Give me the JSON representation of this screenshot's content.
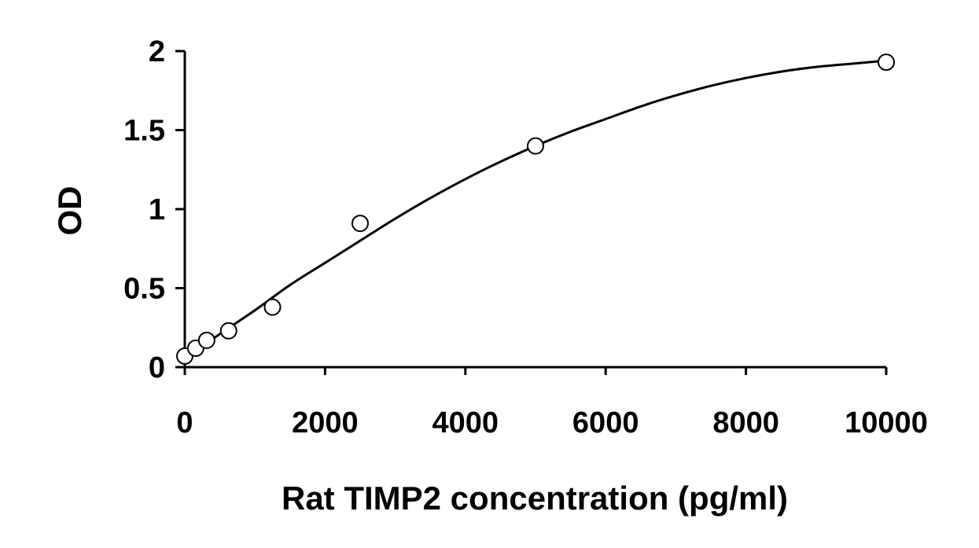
{
  "chart_data": {
    "type": "scatter",
    "title": "",
    "xlabel": "Rat TIMP2 concentration (pg/ml)",
    "ylabel": "OD",
    "xlim": [
      0,
      10000
    ],
    "ylim": [
      0,
      2
    ],
    "xticks": [
      0,
      2000,
      4000,
      6000,
      8000,
      10000
    ],
    "yticks": [
      0,
      0.5,
      1,
      1.5,
      2
    ],
    "xtick_labels": [
      "0",
      "2000",
      "4000",
      "6000",
      "8000",
      "10000"
    ],
    "ytick_labels": [
      "0",
      "0.5",
      "1",
      "1.5",
      "2"
    ],
    "grid": false,
    "legend": "none",
    "series": [
      {
        "marker": "open-circle",
        "x": [
          0,
          156,
          312,
          625,
          1250,
          2500,
          5000,
          10000
        ],
        "y": [
          0.07,
          0.12,
          0.17,
          0.23,
          0.38,
          0.91,
          1.4,
          1.93
        ]
      }
    ],
    "fit_curve": {
      "style": "solid-line",
      "x": [
        0,
        500,
        1000,
        1500,
        2000,
        2500,
        3000,
        3500,
        4000,
        4500,
        5000,
        5500,
        6000,
        6500,
        7000,
        7500,
        8000,
        8500,
        9000,
        9500,
        10000
      ],
      "y": [
        0.05,
        0.21,
        0.36,
        0.52,
        0.66,
        0.8,
        0.94,
        1.07,
        1.19,
        1.3,
        1.4,
        1.49,
        1.57,
        1.65,
        1.72,
        1.78,
        1.83,
        1.87,
        1.9,
        1.92,
        1.94
      ]
    },
    "colors": {
      "ink": "#000000",
      "background": "#ffffff",
      "marker_fill": "#ffffff"
    }
  }
}
